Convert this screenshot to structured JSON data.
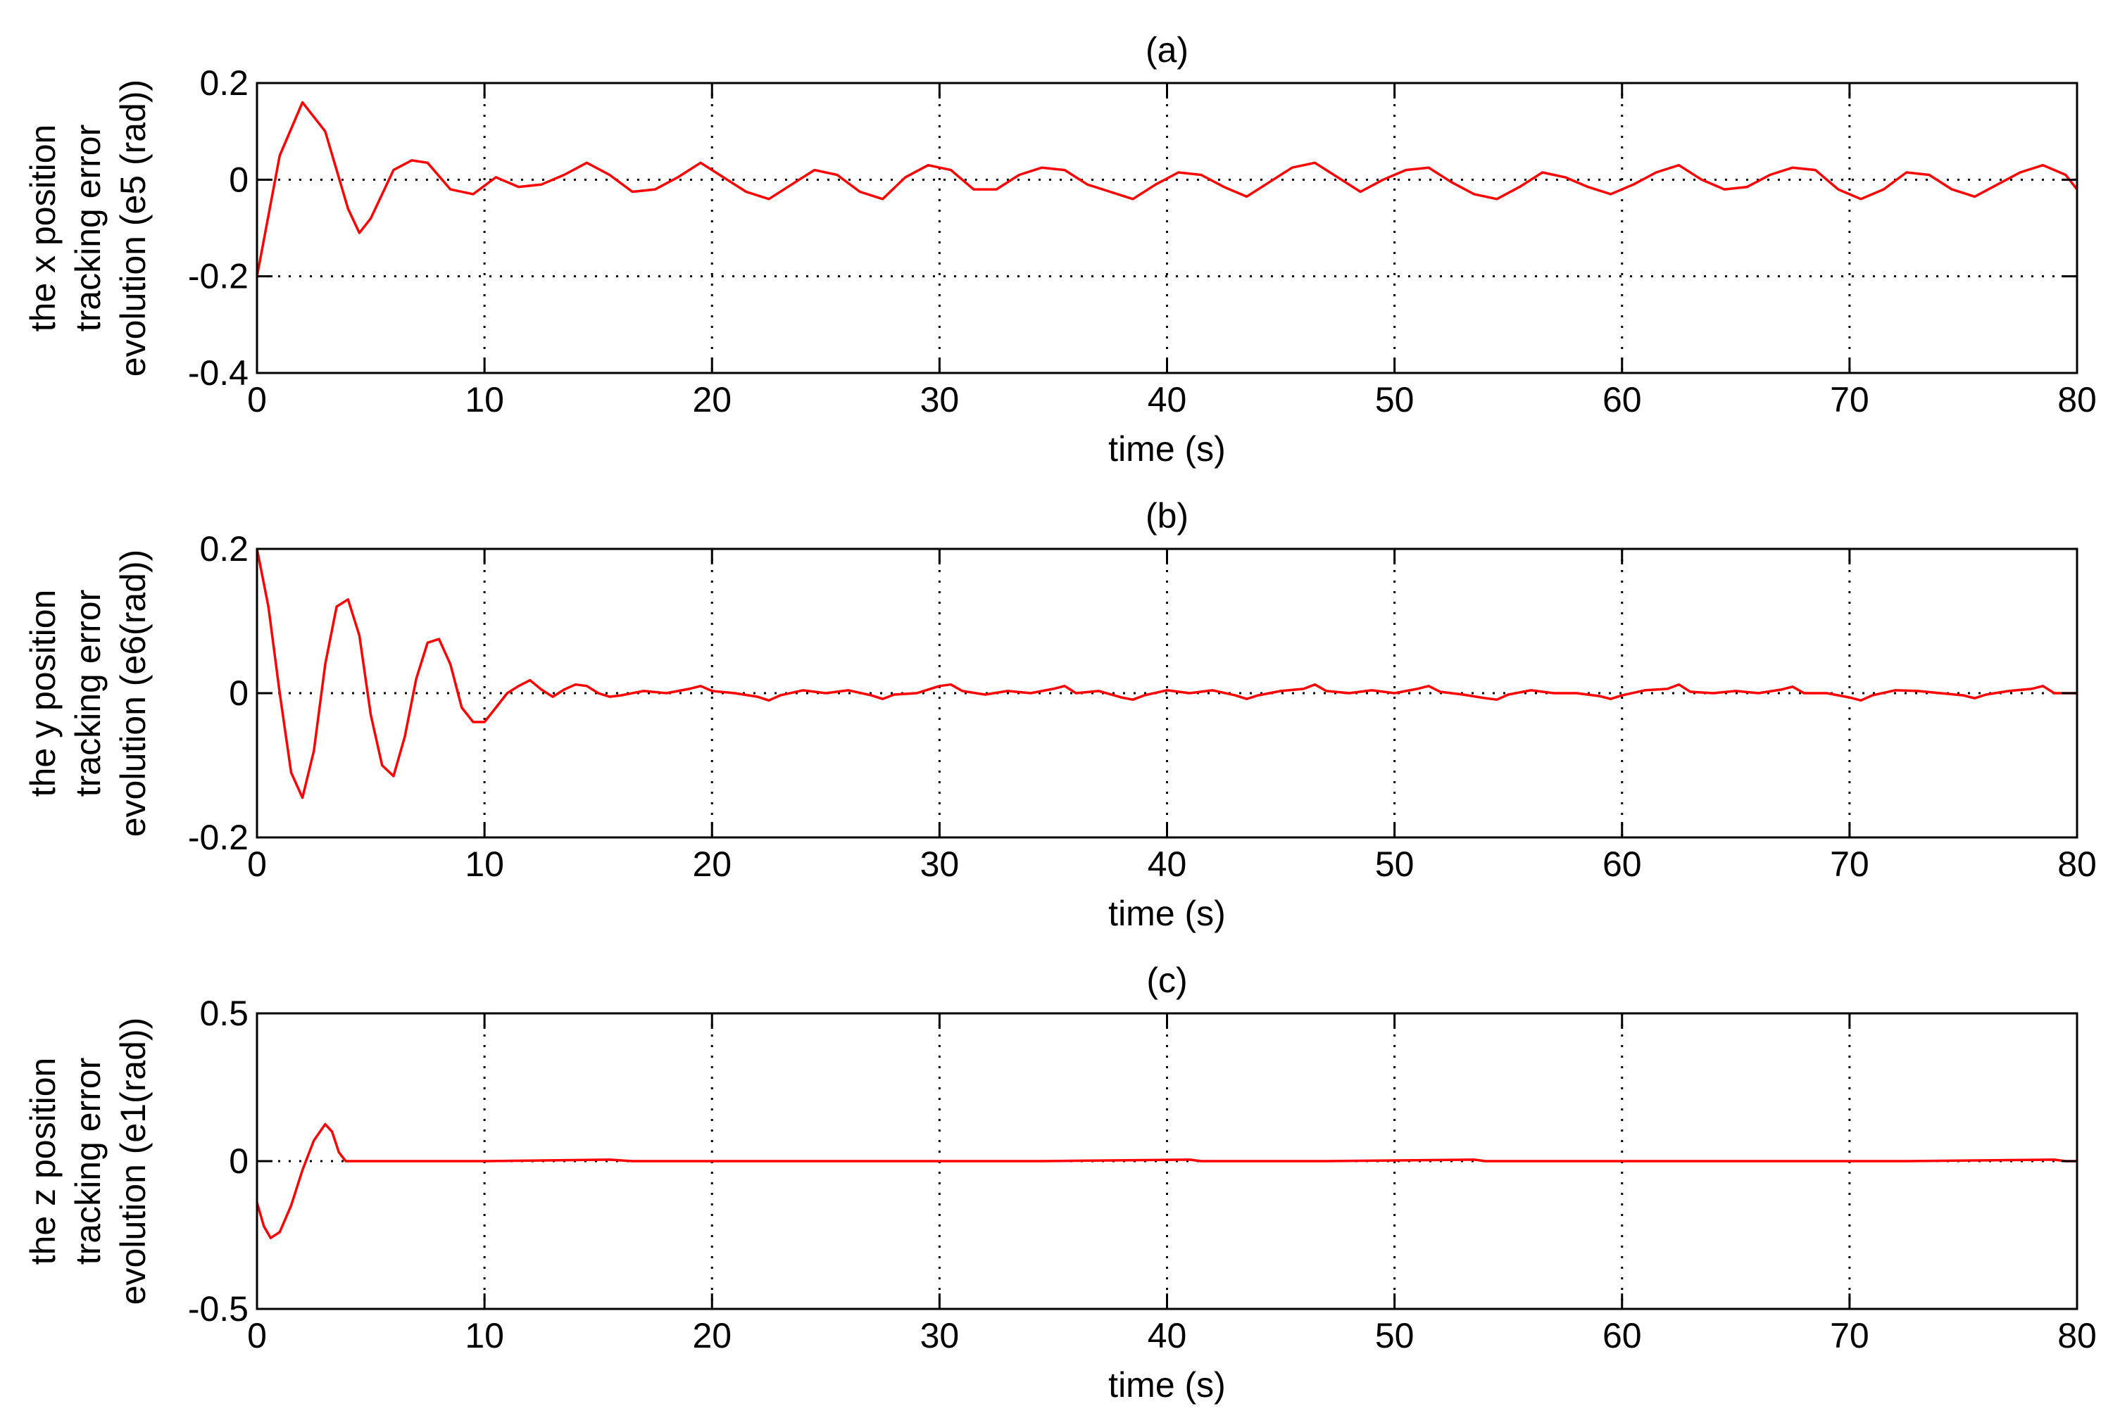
{
  "chart_data": [
    {
      "type": "line",
      "title": "(a)",
      "xlabel": "time (s)",
      "ylabel_lines": [
        "the x position",
        "tracking error",
        "evolution (e5 (rad))"
      ],
      "xlim": [
        0,
        80
      ],
      "ylim": [
        -0.4,
        0.2
      ],
      "xticks": [
        0,
        10,
        20,
        30,
        40,
        50,
        60,
        70,
        80
      ],
      "yticks": [
        -0.4,
        -0.2,
        0,
        0.2
      ],
      "xtick_labels": [
        "0",
        "10",
        "20",
        "30",
        "40",
        "50",
        "60",
        "70",
        "80"
      ],
      "ytick_labels": [
        "-0.4",
        "-0.2",
        "0",
        "0.2"
      ],
      "grid": true,
      "series": [
        {
          "color": "#ff0000",
          "x": [
            0,
            1,
            2,
            3,
            4,
            4.5,
            5,
            6,
            6.8,
            7.5,
            8.5,
            9.5,
            10.5,
            11.5,
            12.5,
            13.5,
            14.5,
            15.5,
            16.5,
            17.5,
            18.5,
            19.5,
            20.5,
            21.5,
            22.5,
            23.5,
            24.5,
            25.5,
            26.5,
            27.5,
            28.5,
            29.5,
            30.5,
            31.5,
            32.5,
            33.5,
            34.5,
            35.5,
            36.5,
            37.5,
            38.5,
            39.5,
            40.5,
            41.5,
            42.5,
            43.5,
            44.5,
            45.5,
            46.5,
            47.5,
            48.5,
            49.5,
            50.5,
            51.5,
            52.5,
            53.5,
            54.5,
            55.5,
            56.5,
            57.5,
            58.5,
            59.5,
            60.5,
            61.5,
            62.5,
            63.5,
            64.5,
            65.5,
            66.5,
            67.5,
            68.5,
            69.5,
            70.5,
            71.5,
            72.5,
            73.5,
            74.5,
            75.5,
            76.5,
            77.5,
            78.5,
            79.5,
            80
          ],
          "y": [
            -0.2,
            0.05,
            0.16,
            0.1,
            -0.06,
            -0.11,
            -0.08,
            0.02,
            0.04,
            0.035,
            -0.02,
            -0.03,
            0.005,
            -0.015,
            -0.01,
            0.01,
            0.035,
            0.01,
            -0.025,
            -0.02,
            0.005,
            0.035,
            0.005,
            -0.025,
            -0.04,
            -0.01,
            0.02,
            0.01,
            -0.025,
            -0.04,
            0.005,
            0.03,
            0.02,
            -0.02,
            -0.02,
            0.01,
            0.025,
            0.02,
            -0.01,
            -0.025,
            -0.04,
            -0.01,
            0.015,
            0.01,
            -0.015,
            -0.035,
            -0.005,
            0.025,
            0.035,
            0.005,
            -0.025,
            0.0,
            0.02,
            0.025,
            -0.005,
            -0.03,
            -0.04,
            -0.015,
            0.015,
            0.005,
            -0.015,
            -0.03,
            -0.01,
            0.015,
            0.03,
            0.0,
            -0.02,
            -0.015,
            0.01,
            0.025,
            0.02,
            -0.02,
            -0.04,
            -0.02,
            0.015,
            0.01,
            -0.02,
            -0.035,
            -0.01,
            0.015,
            0.03,
            0.01,
            -0.02
          ]
        }
      ]
    },
    {
      "type": "line",
      "title": "(b)",
      "xlabel": "time (s)",
      "ylabel_lines": [
        "the y position",
        "tracking error",
        "evolution (e6(rad))"
      ],
      "xlim": [
        0,
        80
      ],
      "ylim": [
        -0.2,
        0.2
      ],
      "xticks": [
        0,
        10,
        20,
        30,
        40,
        50,
        60,
        70,
        80
      ],
      "yticks": [
        -0.2,
        0,
        0.2
      ],
      "xtick_labels": [
        "0",
        "10",
        "20",
        "30",
        "40",
        "50",
        "60",
        "70",
        "80"
      ],
      "ytick_labels": [
        "-0.2",
        "0",
        "0.2"
      ],
      "grid": true,
      "series": [
        {
          "color": "#ff0000",
          "x": [
            0,
            0.5,
            1,
            1.5,
            2,
            2.5,
            3,
            3.5,
            4,
            4.5,
            5,
            5.5,
            6,
            6.5,
            7,
            7.5,
            8,
            8.5,
            9,
            9.5,
            10,
            10.5,
            11,
            11.5,
            12,
            12.5,
            13,
            13.5,
            14,
            14.5,
            15,
            15.5,
            16,
            17,
            18,
            19,
            19.5,
            20,
            21,
            22,
            22.5,
            23,
            24,
            25,
            26,
            27,
            27.5,
            28,
            29,
            30,
            30.5,
            31,
            32,
            33,
            34,
            35,
            35.5,
            36,
            37,
            38,
            38.5,
            39,
            40,
            41,
            42,
            43,
            43.5,
            44,
            45,
            46,
            46.5,
            47,
            48,
            49,
            50,
            51,
            51.5,
            52,
            53,
            54,
            54.5,
            55,
            56,
            57,
            58,
            59,
            59.5,
            60,
            61,
            62,
            62.5,
            63,
            64,
            65,
            66,
            67,
            67.5,
            68,
            69,
            70,
            70.5,
            71,
            72,
            73,
            74,
            75,
            75.5,
            76,
            77,
            78,
            78.5,
            79,
            80
          ],
          "y": [
            0.2,
            0.12,
            0.0,
            -0.11,
            -0.145,
            -0.08,
            0.04,
            0.12,
            0.13,
            0.08,
            -0.03,
            -0.1,
            -0.115,
            -0.06,
            0.02,
            0.07,
            0.075,
            0.04,
            -0.02,
            -0.04,
            -0.04,
            -0.02,
            0.0,
            0.01,
            0.018,
            0.005,
            -0.005,
            0.005,
            0.012,
            0.01,
            0.0,
            -0.005,
            -0.003,
            0.003,
            0.0,
            0.006,
            0.01,
            0.003,
            0.0,
            -0.005,
            -0.01,
            -0.003,
            0.004,
            0.0,
            0.004,
            -0.003,
            -0.008,
            -0.002,
            0.0,
            0.01,
            0.012,
            0.003,
            -0.002,
            0.003,
            0.0,
            0.006,
            0.01,
            0.0,
            0.003,
            -0.006,
            -0.009,
            -0.003,
            0.004,
            0.0,
            0.004,
            -0.003,
            -0.008,
            -0.003,
            0.003,
            0.006,
            0.012,
            0.003,
            0.0,
            0.004,
            0.0,
            0.006,
            0.01,
            0.002,
            -0.002,
            -0.007,
            -0.009,
            -0.002,
            0.004,
            0.0,
            0.0,
            -0.004,
            -0.008,
            -0.003,
            0.004,
            0.006,
            0.012,
            0.002,
            0.0,
            0.003,
            0.0,
            0.005,
            0.009,
            0.0,
            0.0,
            -0.006,
            -0.01,
            -0.003,
            0.004,
            0.003,
            0.0,
            -0.003,
            -0.007,
            -0.002,
            0.003,
            0.006,
            0.01,
            0.0,
            0.0
          ]
        }
      ]
    },
    {
      "type": "line",
      "title": "(c)",
      "xlabel": "time (s)",
      "ylabel_lines": [
        "the z position",
        "tracking error",
        "evolution (e1(rad))"
      ],
      "xlim": [
        0,
        80
      ],
      "ylim": [
        -0.5,
        0.5
      ],
      "xticks": [
        0,
        10,
        20,
        30,
        40,
        50,
        60,
        70,
        80
      ],
      "yticks": [
        -0.5,
        0,
        0.5
      ],
      "xtick_labels": [
        "0",
        "10",
        "20",
        "30",
        "40",
        "50",
        "60",
        "70",
        "80"
      ],
      "ytick_labels": [
        "-0.5",
        "0",
        "0.5"
      ],
      "grid": true,
      "series": [
        {
          "color": "#ff0000",
          "x": [
            0,
            0.3,
            0.6,
            1.0,
            1.5,
            2.0,
            2.5,
            3.0,
            3.3,
            3.6,
            3.9,
            4.2,
            5,
            10,
            15.5,
            16.5,
            22,
            28.5,
            29,
            34.5,
            41,
            41.5,
            47,
            53.5,
            54,
            60,
            66,
            66.5,
            72.5,
            79,
            79.5,
            80
          ],
          "y": [
            -0.14,
            -0.22,
            -0.26,
            -0.24,
            -0.15,
            -0.03,
            0.07,
            0.125,
            0.1,
            0.03,
            0.0,
            0.0,
            0.0,
            0.0,
            0.005,
            0.0,
            0.0,
            0.0,
            0.0,
            0.0,
            0.005,
            0.0,
            0.0,
            0.005,
            0.0,
            0.0,
            0.0,
            0.0,
            0.0,
            0.005,
            0.0,
            0.0
          ]
        }
      ]
    }
  ]
}
